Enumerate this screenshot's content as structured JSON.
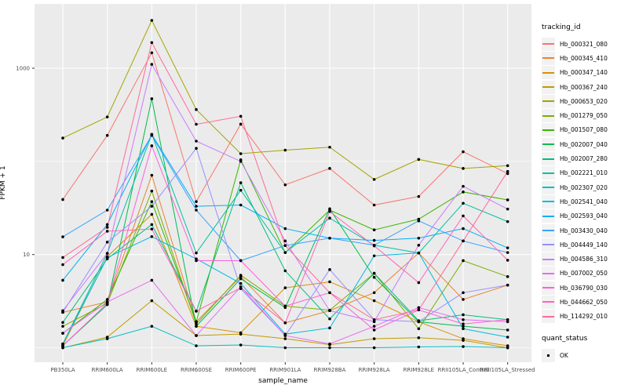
{
  "panel": {
    "bg": "#EBEBEB",
    "grid": "#FFFFFF",
    "key_bg": "#F2F2F2",
    "tick_text_color": "#4D4D4D",
    "tick_color": "#333333"
  },
  "chart_data": {
    "type": "line",
    "title": "",
    "xlabel": "sample_name",
    "ylabel": "FPKM + 1",
    "y_scale": "log10",
    "y_ticks": [
      10,
      1000
    ],
    "y_minor_gridlines": [
      1,
      100
    ],
    "ylim": [
      0.7,
      4600
    ],
    "grid": "on",
    "legend_position": "right",
    "point_shape": "filled-circle",
    "point_color": "#000000",
    "categories": [
      "PB350LA",
      "RRIM600LA",
      "RRIM600LE",
      "RRIM600SE",
      "RRIM600PE",
      "RRIM901LA",
      "RRIM928BA",
      "RRIM928LA",
      "RRIM928LE",
      "RRII105LA_Control",
      "RRII105LA_Stressed"
    ],
    "legend_color_title": "tracking_id",
    "legend_shape_title": "quant_status",
    "legend_shape_items": [
      "OK"
    ],
    "series": [
      {
        "name": "Hb_000321_080",
        "color": "#F8766D",
        "values": [
          39,
          190,
          1466,
          37,
          251,
          56,
          84,
          34,
          42,
          127,
          74
        ]
      },
      {
        "name": "Hb_000345_410",
        "color": "#EA8331",
        "values": [
          2.4,
          3.1,
          71,
          1.9,
          5.8,
          1.85,
          2.5,
          3.9,
          10.4,
          3.3,
          4.7
        ]
      },
      {
        "name": "Hb_000347_140",
        "color": "#D89000",
        "values": [
          1.05,
          9.5,
          27,
          1.7,
          1.45,
          4.4,
          5.1,
          3.2,
          1.9,
          1.25,
          1.05
        ]
      },
      {
        "name": "Hb_000367_240",
        "color": "#C09B00",
        "values": [
          1.0,
          1.3,
          3.2,
          1.35,
          1.4,
          1.25,
          1.08,
          1.25,
          1.28,
          1.2,
          1.0
        ]
      },
      {
        "name": "Hb_000653_020",
        "color": "#A3A500",
        "values": [
          178,
          300,
          3260,
          360,
          121,
          132,
          142,
          64,
          105,
          84,
          90
        ]
      },
      {
        "name": "Hb_001279_050",
        "color": "#7CAE00",
        "values": [
          1.7,
          3.0,
          48,
          1.8,
          6.0,
          2.8,
          2.53,
          6.3,
          1.6,
          8.6,
          5.8
        ]
      },
      {
        "name": "Hb_001507_080",
        "color": "#39B600",
        "values": [
          1.43,
          3.3,
          37,
          1.9,
          104,
          10.5,
          30,
          18.4,
          24,
          47,
          38.6
        ]
      },
      {
        "name": "Hb_002007_040",
        "color": "#00BB4E",
        "values": [
          1.05,
          2.9,
          470,
          1.7,
          5.5,
          2.7,
          31,
          5.7,
          1.9,
          1.7,
          1.55
        ]
      },
      {
        "name": "Hb_002007_280",
        "color": "#00BF7D",
        "values": [
          1.87,
          9.0,
          21,
          2.47,
          59,
          6.7,
          2.04,
          6.3,
          1.95,
          2.26,
          2.0
        ]
      },
      {
        "name": "Hb_002221_010",
        "color": "#00C1A3",
        "values": [
          1.1,
          10.3,
          195,
          10.4,
          49,
          10.5,
          24.6,
          12.6,
          10.4,
          35.5,
          22.6
        ]
      },
      {
        "name": "Hb_002307_020",
        "color": "#00BFC4",
        "values": [
          1.0,
          1.25,
          1.7,
          1.05,
          1.07,
          1.0,
          1.0,
          1.0,
          1.02,
          1.03,
          1.0
        ]
      },
      {
        "name": "Hb_002541_040",
        "color": "#00BAE0",
        "values": [
          1.1,
          9.3,
          15.6,
          9.0,
          4.9,
          1.4,
          1.63,
          9.7,
          10.4,
          1.6,
          1.3
        ]
      },
      {
        "name": "Hb_002593_040",
        "color": "#00B0F6",
        "values": [
          5.3,
          21,
          195,
          33,
          34,
          19,
          15,
          14.2,
          15,
          19,
          11.8
        ]
      },
      {
        "name": "Hb_003430_040",
        "color": "#35A2FF",
        "values": [
          15.5,
          30,
          190,
          30,
          8.6,
          12.5,
          15,
          12.6,
          23,
          14,
          10.5
        ]
      },
      {
        "name": "Hb_004449_140",
        "color": "#9590FF",
        "values": [
          2.4,
          13.6,
          33,
          138,
          4.3,
          1.35,
          6.9,
          2.0,
          1.9,
          3.9,
          4.7
        ]
      },
      {
        "name": "Hb_004586_310",
        "color": "#C77CFF",
        "values": [
          2.5,
          10.3,
          1100,
          165,
          100,
          14,
          2.5,
          1.9,
          12.6,
          54,
          30.8
        ]
      },
      {
        "name": "Hb_007002_050",
        "color": "#E76BF3",
        "values": [
          1.43,
          3.1,
          5.3,
          1.35,
          4.5,
          1.35,
          1.1,
          1.7,
          2.7,
          2.0,
          1.9
        ]
      },
      {
        "name": "Hb_036790_030",
        "color": "#FA62DB",
        "values": [
          1.05,
          3.0,
          147,
          8.6,
          8.6,
          2.8,
          3.9,
          1.55,
          2.55,
          1.8,
          2.0
        ]
      },
      {
        "name": "Hb_044662_050",
        "color": "#FF62BC",
        "values": [
          7.8,
          17.8,
          18.8,
          2.47,
          4.4,
          1.85,
          29,
          12.4,
          5.0,
          26,
          8.7
        ]
      },
      {
        "name": "Hb_114292_010",
        "color": "#FF6A98",
        "values": [
          9.3,
          19.6,
          1884,
          250,
          305,
          12.5,
          3.9,
          2.0,
          2.55,
          14,
          78
        ]
      }
    ]
  }
}
